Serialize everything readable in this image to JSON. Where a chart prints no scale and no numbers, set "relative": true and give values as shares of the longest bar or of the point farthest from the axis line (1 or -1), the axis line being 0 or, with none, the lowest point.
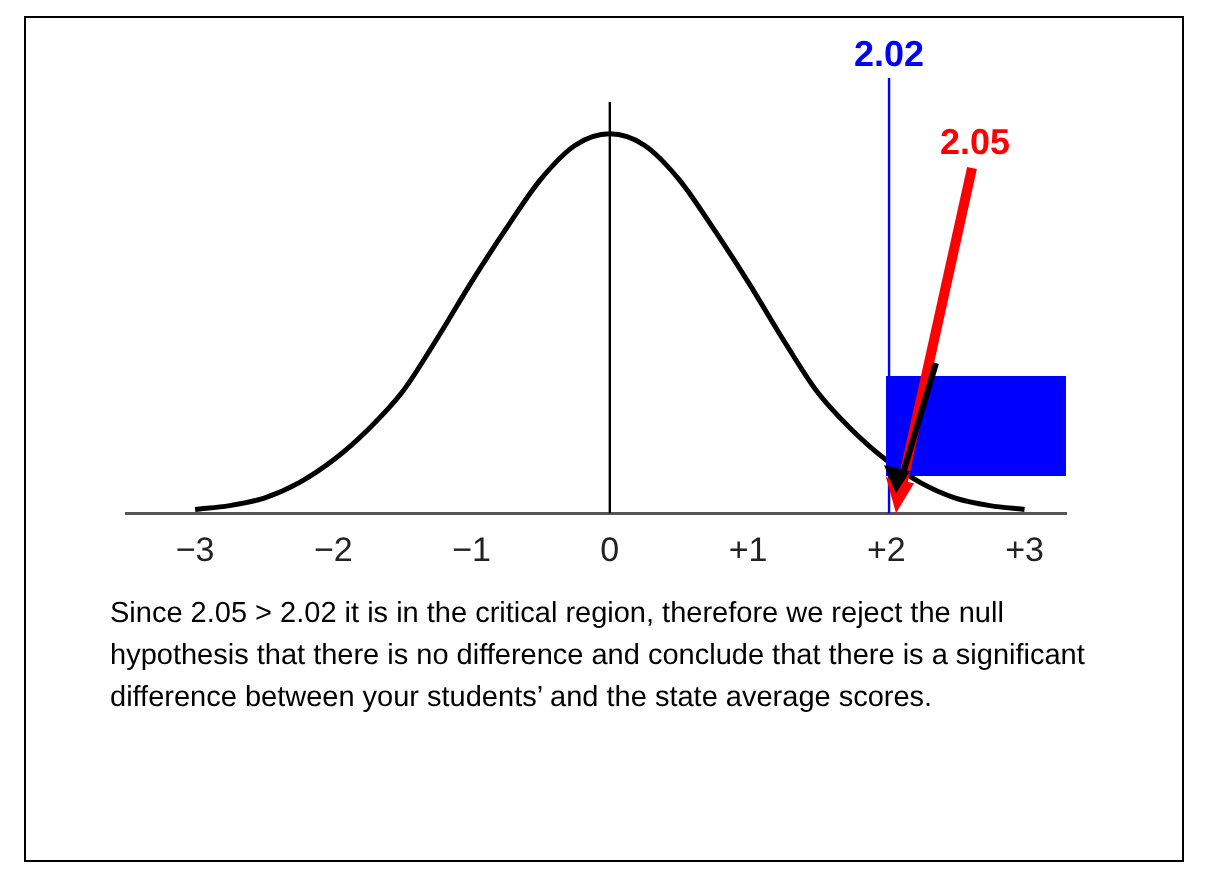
{
  "chart_data": {
    "type": "line",
    "relative": true,
    "x": [
      -3,
      -2.75,
      -2.5,
      -2.25,
      -2,
      -1.75,
      -1.5,
      -1.25,
      -1,
      -0.75,
      -0.5,
      -0.25,
      0,
      0.25,
      0.5,
      0.75,
      1,
      1.25,
      1.5,
      1.75,
      2,
      2.25,
      2.5,
      2.75,
      3
    ],
    "series": [
      {
        "color": "#000000",
        "values": [
          0.01,
          0.02,
          0.04,
          0.08,
          0.14,
          0.22,
          0.32,
          0.46,
          0.61,
          0.75,
          0.88,
          0.97,
          1,
          0.97,
          0.88,
          0.75,
          0.61,
          0.46,
          0.32,
          0.22,
          0.14,
          0.08,
          0.04,
          0.02,
          0.01
        ]
      }
    ],
    "xlim": [
      -3.5,
      3.3
    ],
    "xticks": [
      {
        "value": -3,
        "label": "−3"
      },
      {
        "value": -2,
        "label": "−2"
      },
      {
        "value": -1,
        "label": "−1"
      },
      0,
      {
        "value": 1,
        "label": "+1"
      },
      {
        "value": 2,
        "label": "+2"
      },
      {
        "value": 3,
        "label": "+3"
      }
    ],
    "ref_lines": [
      {
        "axis": "x",
        "value": 0,
        "color": "#000000"
      },
      {
        "axis": "x",
        "value": 2.02,
        "label": "2.02",
        "color": "#0000ff"
      }
    ],
    "annotations": [
      "2.05",
      "Since 2.05 > 2.02 it is in the critical region, therefore we reject the null hypothesis that there is no difference and conclude that there is a significant difference between your students’ and the state average scores."
    ],
    "grid": false,
    "legend": false,
    "marker": "none",
    "line_style": "solid"
  }
}
